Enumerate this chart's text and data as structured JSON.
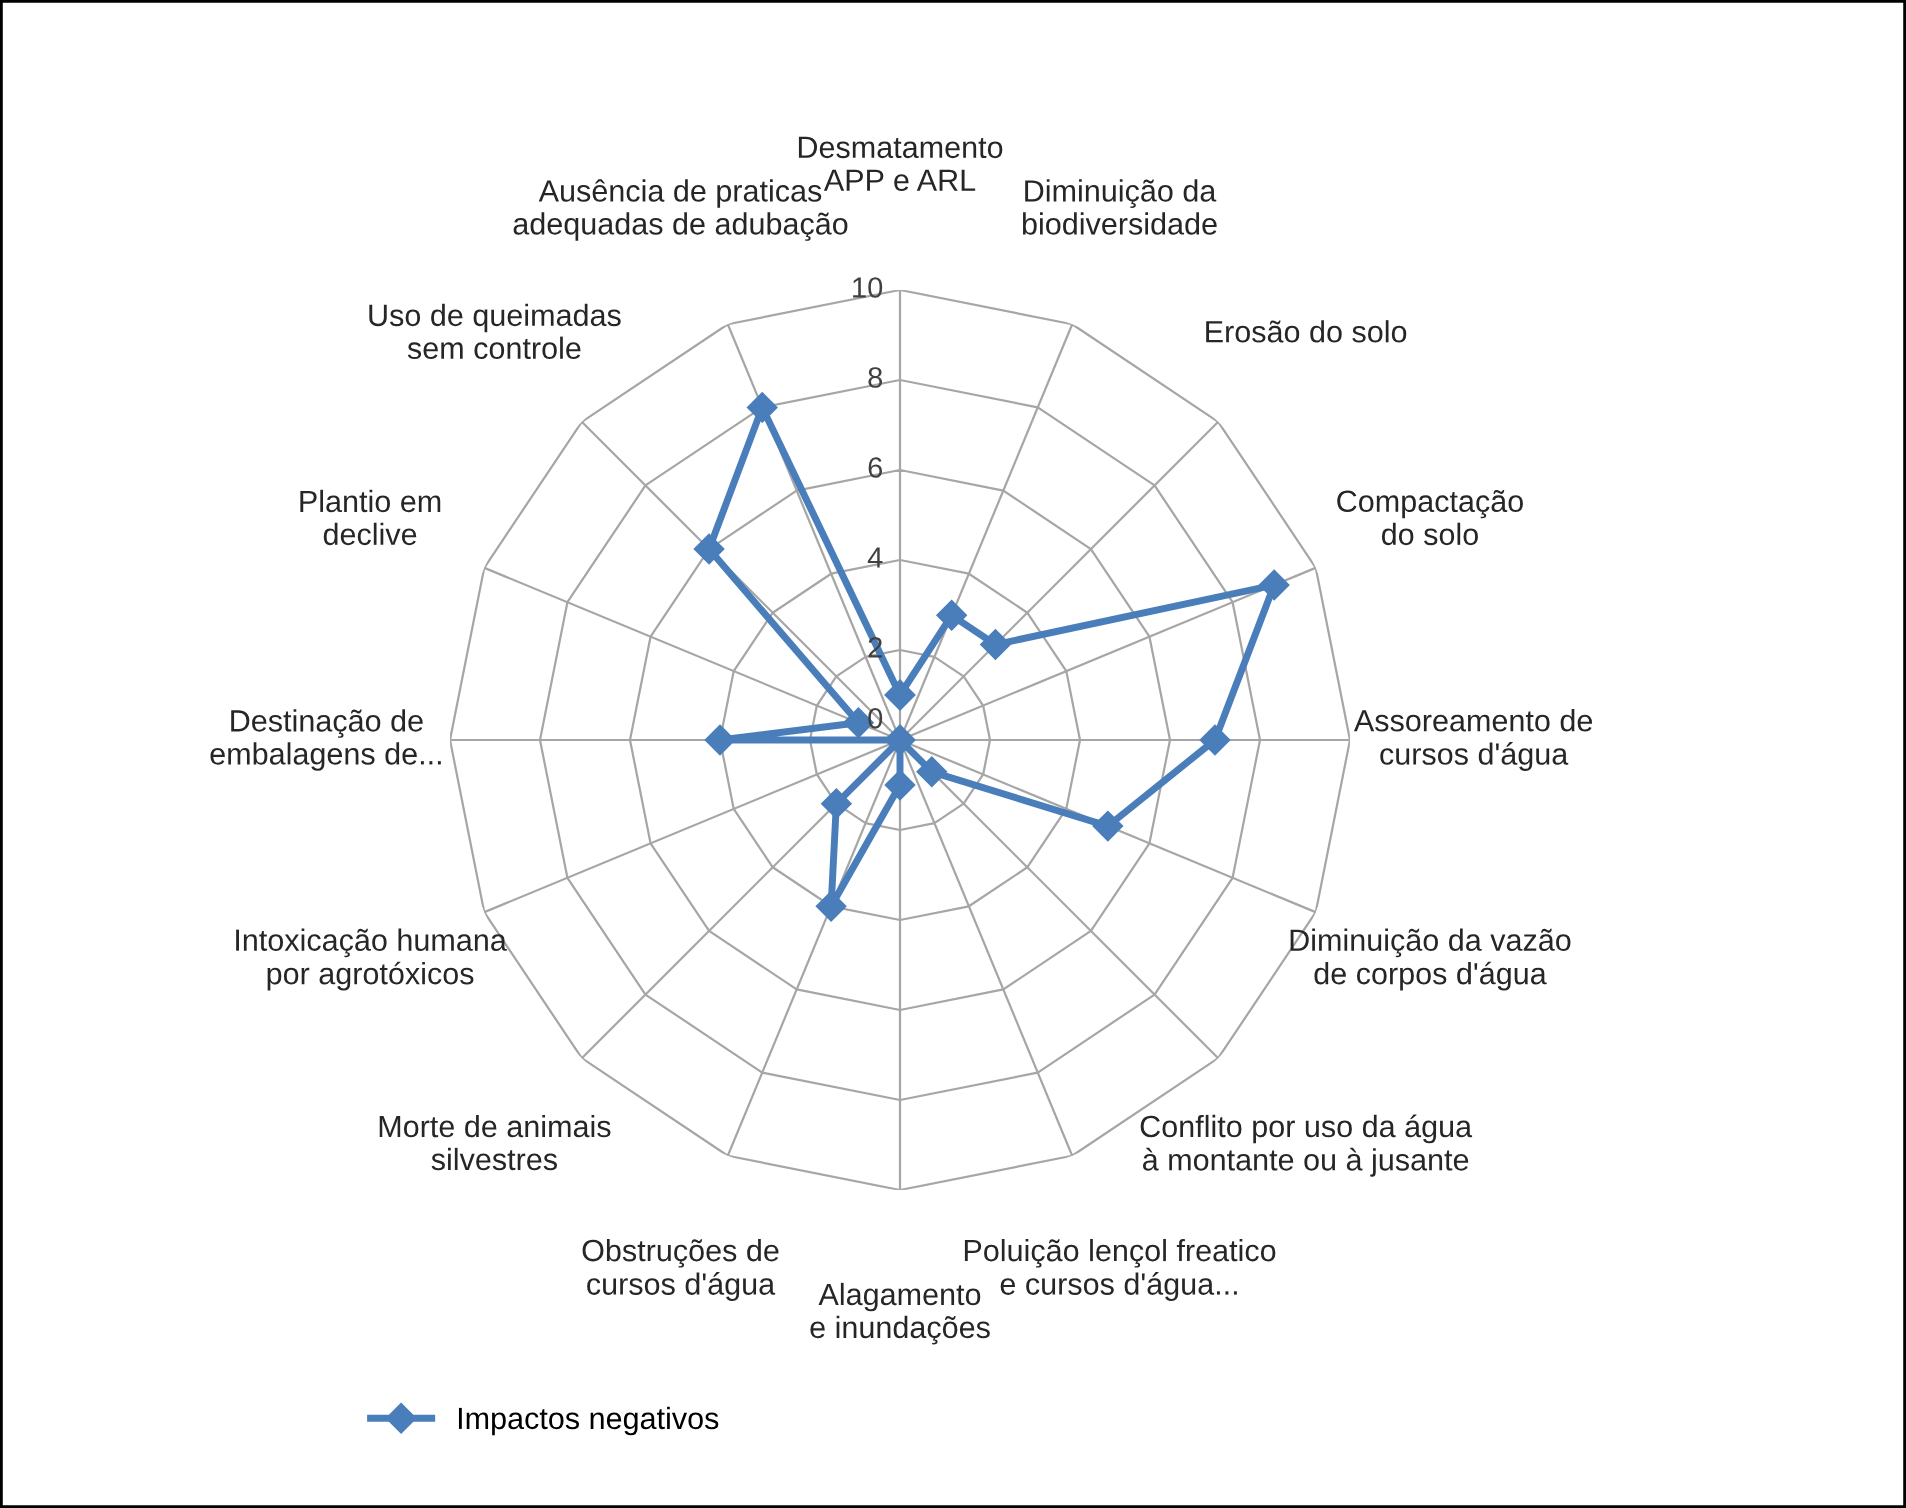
{
  "chart_data": {
    "type": "radar",
    "categories": [
      "Desmatamento APP e ARL",
      "Diminuição da biodiversidade",
      "Erosão do solo",
      "Compactação do solo",
      "Assoreamento de cursos d'água",
      "Diminuição da vazão de corpos d'água",
      "Conflito por uso da água à montante ou à jusante",
      "Poluição lençol freatico e cursos d'água...",
      "Alagamento e inundações",
      "Obstruções de cursos d'água",
      "Morte de animais silvestres",
      "Intoxicação humana por agrotóxicos",
      "Destinação de embalagens de...",
      "Plantio em declive",
      "Uso de queimadas sem controle",
      "Ausência de praticas adequadas de adubação"
    ],
    "series": [
      {
        "name": "Impactos negativos",
        "color": "#4a7ebb",
        "values": [
          1,
          3,
          3,
          9,
          7,
          5,
          1,
          0,
          1,
          4,
          2,
          0,
          4,
          1,
          6,
          8
        ]
      }
    ],
    "ylim": [
      0,
      10
    ],
    "yticks": [
      0,
      2,
      4,
      6,
      8,
      10
    ],
    "grid": true,
    "legend": "bottom left",
    "marker": "diamond"
  }
}
